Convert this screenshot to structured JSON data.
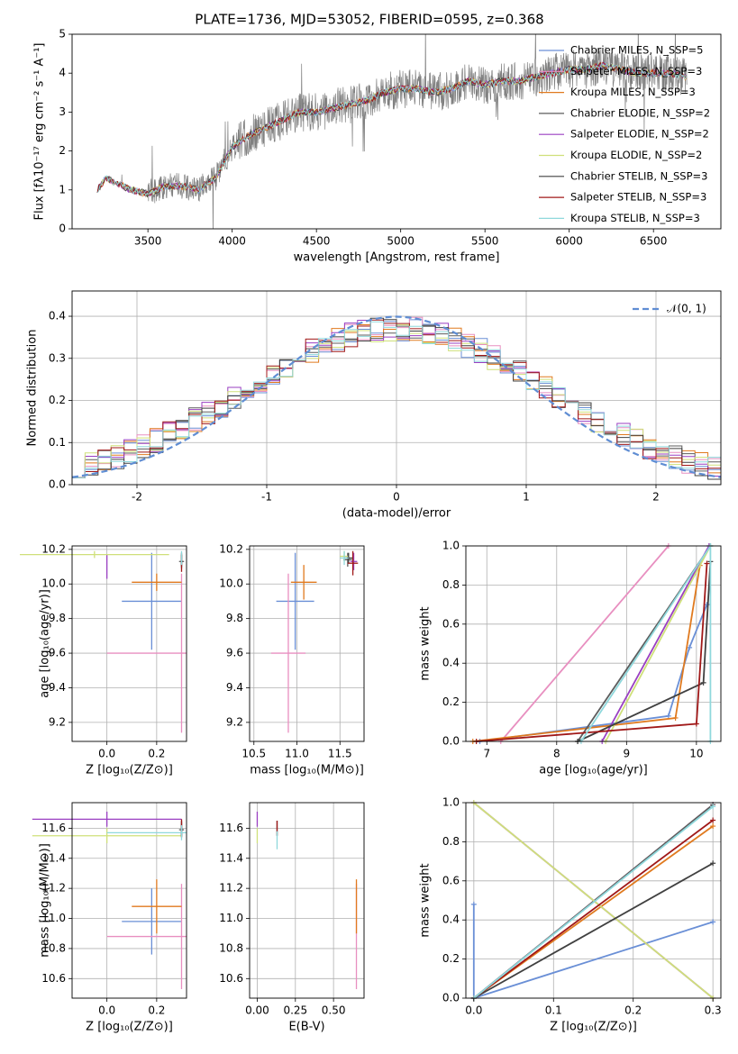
{
  "colors": {
    "Chabrier MILES": "#6a8fd6",
    "Salpeter MILES": "#e88fc0",
    "Kroupa MILES": "#e07a1f",
    "Chabrier ELODIE": "#5c5c5c",
    "Salpeter ELODIE": "#9a3fc2",
    "Kroupa ELODIE": "#cfe07a",
    "Chabrier STELIB": "#404040",
    "Salpeter STELIB": "#a01818",
    "Kroupa STELIB": "#8fd8dc",
    "observed": "#808080",
    "gaussian": "#5f8dd3",
    "grid": "#b0b0b0"
  },
  "chart_data": [
    {
      "id": "spectrum",
      "type": "line",
      "title": "PLATE=1736, MJD=53052, FIBERID=0595, z=0.368",
      "xlabel": "wavelength [Angstrom, rest frame]",
      "ylabel": "Flux [fλ10⁻¹⁷ erg cm⁻² s⁻¹ A⁻¹]",
      "xlim": [
        3050,
        6900
      ],
      "ylim": [
        0,
        5
      ],
      "xticks": [
        3500,
        4000,
        4500,
        5000,
        5500,
        6000,
        6500
      ],
      "yticks": [
        0,
        1,
        2,
        3,
        4,
        5
      ],
      "grid": false,
      "legend_position": "right",
      "legend": [
        "Chabrier MILES, N_SSP=5",
        "Salpeter MILES, N_SSP=3",
        "Kroupa MILES, N_SSP=3",
        "Chabrier ELODIE, N_SSP=2",
        "Salpeter ELODIE, N_SSP=2",
        "Kroupa ELODIE, N_SSP=2",
        "Chabrier STELIB, N_SSP=3",
        "Salpeter STELIB, N_SSP=3",
        "Kroupa STELIB, N_SSP=3"
      ],
      "continuum_x": [
        3200,
        3250,
        3300,
        3400,
        3500,
        3600,
        3700,
        3800,
        3900,
        4000,
        4100,
        4200,
        4300,
        4400,
        4500,
        4600,
        4700,
        4800,
        4900,
        5000,
        5100,
        5200,
        5300,
        5400,
        5500,
        5600,
        5700,
        5800,
        5900,
        6000,
        6100,
        6200,
        6300,
        6400,
        6500,
        6600,
        6700
      ],
      "continuum_y": [
        1.0,
        1.3,
        1.2,
        1.0,
        0.9,
        1.1,
        1.1,
        1.0,
        1.3,
        2.1,
        2.4,
        2.6,
        2.8,
        3.0,
        3.0,
        3.1,
        3.2,
        3.3,
        3.5,
        3.6,
        3.6,
        3.5,
        3.6,
        3.8,
        3.7,
        3.8,
        3.8,
        3.9,
        4.0,
        4.1,
        4.1,
        4.2,
        4.1,
        4.0,
        4.0,
        4.0,
        3.9
      ]
    },
    {
      "id": "residuals",
      "type": "histogram",
      "xlabel": "(data-model)/error",
      "ylabel": "Normed distribution",
      "xlim": [
        -2.5,
        2.5
      ],
      "ylim": [
        0,
        0.46
      ],
      "xticks": [
        -2,
        -1,
        0,
        1,
        2
      ],
      "yticks": [
        0.0,
        0.1,
        0.2,
        0.3,
        0.4
      ],
      "grid": true,
      "legend_position": "top-right",
      "legend": [
        "𝒩(0, 1)"
      ],
      "bin_width": 0.1
    },
    {
      "id": "age-vs-Z",
      "type": "errorbar",
      "xlabel": "Z [log₁₀(Z/Z⊙)]",
      "ylabel": "age  [log₁₀(age/yr)]",
      "xlim": [
        -0.14,
        0.32
      ],
      "ylim": [
        9.09,
        10.22
      ],
      "xticks": [
        0.0,
        0.2
      ],
      "yticks": [
        9.2,
        9.4,
        9.6,
        9.8,
        10.0,
        10.2
      ],
      "grid": true,
      "points": [
        {
          "model": "Chabrier MILES",
          "x": 0.18,
          "xerr": 0.12,
          "y": 9.9,
          "yerr": 0.28
        },
        {
          "model": "Salpeter MILES",
          "x": 0.3,
          "xerr": 0.3,
          "y": 9.6,
          "yerr": 0.46
        },
        {
          "model": "Kroupa MILES",
          "x": 0.2,
          "xerr": 0.1,
          "y": 10.01,
          "yerr": 0.05
        },
        {
          "model": "Chabrier ELODIE",
          "x": 0.3,
          "xerr": 0.01,
          "y": 10.13,
          "yerr": 0.04
        },
        {
          "model": "Salpeter ELODIE",
          "x": 0.0,
          "xerr": 0.0,
          "y": 10.1,
          "yerr": 0.07
        },
        {
          "model": "Kroupa ELODIE",
          "x": -0.05,
          "xerr": 0.3,
          "y": 10.17,
          "yerr": 0.02
        },
        {
          "model": "Chabrier STELIB",
          "x": 0.3,
          "xerr": 0.0,
          "y": 10.14,
          "yerr": 0.04
        },
        {
          "model": "Salpeter STELIB",
          "x": 0.3,
          "xerr": 0.0,
          "y": 10.12,
          "yerr": 0.05
        },
        {
          "model": "Kroupa STELIB",
          "x": 0.3,
          "xerr": 0.0,
          "y": 10.15,
          "yerr": 0.04
        }
      ]
    },
    {
      "id": "age-vs-mass",
      "type": "errorbar",
      "xlabel": "mass [log₁₀(M/M⊙)]",
      "ylabel": "",
      "xlim": [
        10.45,
        11.78
      ],
      "ylim": [
        9.09,
        10.22
      ],
      "xticks": [
        10.5,
        11.0,
        11.5
      ],
      "yticks": [
        9.2,
        9.4,
        9.6,
        9.8,
        10.0,
        10.2
      ],
      "grid": true,
      "points": [
        {
          "model": "Chabrier MILES",
          "x": 10.98,
          "xerr": 0.22,
          "y": 9.9,
          "yerr": 0.28
        },
        {
          "model": "Salpeter MILES",
          "x": 10.9,
          "xerr": 0.2,
          "y": 9.6,
          "yerr": 0.46
        },
        {
          "model": "Kroupa MILES",
          "x": 11.08,
          "xerr": 0.15,
          "y": 10.01,
          "yerr": 0.1
        },
        {
          "model": "Chabrier ELODIE",
          "x": 11.59,
          "xerr": 0.05,
          "y": 10.14,
          "yerr": 0.04
        },
        {
          "model": "Salpeter ELODIE",
          "x": 11.66,
          "xerr": 0.04,
          "y": 10.13,
          "yerr": 0.05
        },
        {
          "model": "Kroupa ELODIE",
          "x": 11.55,
          "xerr": 0.05,
          "y": 10.16,
          "yerr": 0.03
        },
        {
          "model": "Chabrier STELIB",
          "x": 11.6,
          "xerr": 0.05,
          "y": 10.15,
          "yerr": 0.03
        },
        {
          "model": "Salpeter STELIB",
          "x": 11.65,
          "xerr": 0.06,
          "y": 10.12,
          "yerr": 0.07
        },
        {
          "model": "Kroupa STELIB",
          "x": 11.55,
          "xerr": 0.05,
          "y": 10.15,
          "yerr": 0.04
        }
      ]
    },
    {
      "id": "mass-weight-vs-age",
      "type": "line",
      "xlabel": "age  [log₁₀(age/yr)]",
      "ylabel": "mass weight",
      "xlim": [
        6.7,
        10.35
      ],
      "ylim": [
        0,
        1
      ],
      "xticks": [
        7,
        8,
        9,
        10
      ],
      "yticks": [
        0.0,
        0.2,
        0.4,
        0.6,
        0.8,
        1.0
      ],
      "grid": true,
      "series": [
        {
          "model": "Chabrier MILES",
          "x": [
            6.9,
            9.6,
            9.9,
            10.15
          ],
          "y": [
            0.0,
            0.13,
            0.48,
            0.7
          ]
        },
        {
          "model": "Salpeter MILES",
          "x": [
            7.2,
            9.6
          ],
          "y": [
            0.0,
            1.0
          ]
        },
        {
          "model": "Kroupa MILES",
          "x": [
            6.8,
            9.7,
            10.05
          ],
          "y": [
            0.0,
            0.12,
            0.9
          ]
        },
        {
          "model": "Chabrier ELODIE",
          "x": [
            8.3,
            10.2
          ],
          "y": [
            0.0,
            1.0
          ]
        },
        {
          "model": "Salpeter ELODIE",
          "x": [
            8.65,
            10.18
          ],
          "y": [
            0.0,
            1.0
          ]
        },
        {
          "model": "Kroupa ELODIE",
          "x": [
            8.7,
            10.2
          ],
          "y": [
            0.0,
            1.0
          ]
        },
        {
          "model": "Chabrier STELIB",
          "x": [
            8.3,
            10.1,
            10.2
          ],
          "y": [
            0.0,
            0.3,
            0.92
          ]
        },
        {
          "model": "Salpeter STELIB",
          "x": [
            6.85,
            10.0,
            10.15
          ],
          "y": [
            0.0,
            0.09,
            0.91
          ]
        },
        {
          "model": "Kroupa STELIB",
          "x": [
            8.35,
            10.2,
            10.2
          ],
          "y": [
            0.0,
            1.0,
            0.0
          ]
        }
      ]
    },
    {
      "id": "mass-vs-Z",
      "type": "errorbar",
      "xlabel": "Z [log₁₀(Z/Z⊙)]",
      "ylabel": "mass [log₁₀(M/M⊙)]",
      "xlim": [
        -0.14,
        0.32
      ],
      "ylim": [
        10.47,
        11.77
      ],
      "xticks": [
        0.0,
        0.2
      ],
      "yticks": [
        10.6,
        10.8,
        11.0,
        11.2,
        11.4,
        11.6
      ],
      "grid": true,
      "points": [
        {
          "model": "Chabrier MILES",
          "x": 0.18,
          "xerr": 0.12,
          "y": 10.98,
          "yerr": 0.22
        },
        {
          "model": "Salpeter MILES",
          "x": 0.3,
          "xerr": 0.3,
          "y": 10.88,
          "yerr": 0.35
        },
        {
          "model": "Kroupa MILES",
          "x": 0.2,
          "xerr": 0.1,
          "y": 11.08,
          "yerr": 0.18
        },
        {
          "model": "Chabrier ELODIE",
          "x": 0.3,
          "xerr": 0.01,
          "y": 11.59,
          "yerr": 0.05
        },
        {
          "model": "Salpeter ELODIE",
          "x": 0.0,
          "xerr": 0.3,
          "y": 11.66,
          "yerr": 0.05
        },
        {
          "model": "Kroupa ELODIE",
          "x": 0.0,
          "xerr": 0.3,
          "y": 11.55,
          "yerr": 0.05
        },
        {
          "model": "Chabrier STELIB",
          "x": 0.3,
          "xerr": 0.0,
          "y": 11.6,
          "yerr": 0.05
        },
        {
          "model": "Salpeter STELIB",
          "x": 0.3,
          "xerr": 0.0,
          "y": 11.6,
          "yerr": 0.06
        },
        {
          "model": "Kroupa STELIB",
          "x": 0.3,
          "xerr": 0.3,
          "y": 11.57,
          "yerr": 0.05
        }
      ]
    },
    {
      "id": "mass-vs-ebv",
      "type": "errorbar",
      "xlabel": "E(B-V)",
      "ylabel": "",
      "xlim": [
        -0.05,
        0.7
      ],
      "ylim": [
        10.47,
        11.77
      ],
      "xticks": [
        0.0,
        0.25,
        0.5
      ],
      "yticks": [
        10.6,
        10.8,
        11.0,
        11.2,
        11.4,
        11.6
      ],
      "grid": true,
      "points": [
        {
          "model": "Salpeter MILES",
          "x": 0.65,
          "xerr": 0.0,
          "y": 10.88,
          "yerr": 0.35
        },
        {
          "model": "Kroupa MILES",
          "x": 0.65,
          "xerr": 0.0,
          "y": 11.08,
          "yerr": 0.18
        },
        {
          "model": "Salpeter ELODIE",
          "x": 0.0,
          "xerr": 0.0,
          "y": 11.66,
          "yerr": 0.05
        },
        {
          "model": "Kroupa ELODIE",
          "x": 0.0,
          "xerr": 0.0,
          "y": 11.55,
          "yerr": 0.05
        },
        {
          "model": "Chabrier STELIB",
          "x": 0.13,
          "xerr": 0.0,
          "y": 11.6,
          "yerr": 0.05
        },
        {
          "model": "Salpeter STELIB",
          "x": 0.13,
          "xerr": 0.0,
          "y": 11.6,
          "yerr": 0.05
        },
        {
          "model": "Kroupa STELIB",
          "x": 0.13,
          "xerr": 0.0,
          "y": 11.52,
          "yerr": 0.06
        }
      ]
    },
    {
      "id": "mass-weight-vs-Z",
      "type": "line",
      "xlabel": "Z [log₁₀(Z/Z⊙)]",
      "ylabel": "mass weight",
      "xlim": [
        -0.01,
        0.31
      ],
      "ylim": [
        0,
        1
      ],
      "xticks": [
        0.0,
        0.1,
        0.2,
        0.3
      ],
      "yticks": [
        0.0,
        0.2,
        0.4,
        0.6,
        0.8,
        1.0
      ],
      "grid": true,
      "series": [
        {
          "model": "Chabrier MILES",
          "x": [
            0.0,
            0.3,
            0.0,
            0.0
          ],
          "y": [
            0.0,
            0.39,
            0.0,
            0.48
          ]
        },
        {
          "model": "Salpeter MILES",
          "x": [
            0.0,
            0.3
          ],
          "y": [
            0.0,
            0.99
          ]
        },
        {
          "model": "Kroupa MILES",
          "x": [
            0.0,
            0.3
          ],
          "y": [
            0.0,
            0.88
          ]
        },
        {
          "model": "Chabrier ELODIE",
          "x": [
            0.0,
            0.3
          ],
          "y": [
            0.0,
            0.99
          ]
        },
        {
          "model": "Salpeter ELODIE",
          "x": [
            0.0,
            0.3
          ],
          "y": [
            1.0,
            0.0
          ]
        },
        {
          "model": "Kroupa ELODIE",
          "x": [
            0.0,
            0.3
          ],
          "y": [
            1.0,
            0.0
          ]
        },
        {
          "model": "Chabrier STELIB",
          "x": [
            0.0,
            0.3
          ],
          "y": [
            0.0,
            0.69
          ]
        },
        {
          "model": "Salpeter STELIB",
          "x": [
            0.0,
            0.3
          ],
          "y": [
            0.0,
            0.91
          ]
        },
        {
          "model": "Kroupa STELIB",
          "x": [
            0.0,
            0.3
          ],
          "y": [
            0.0,
            0.98
          ]
        }
      ]
    }
  ]
}
